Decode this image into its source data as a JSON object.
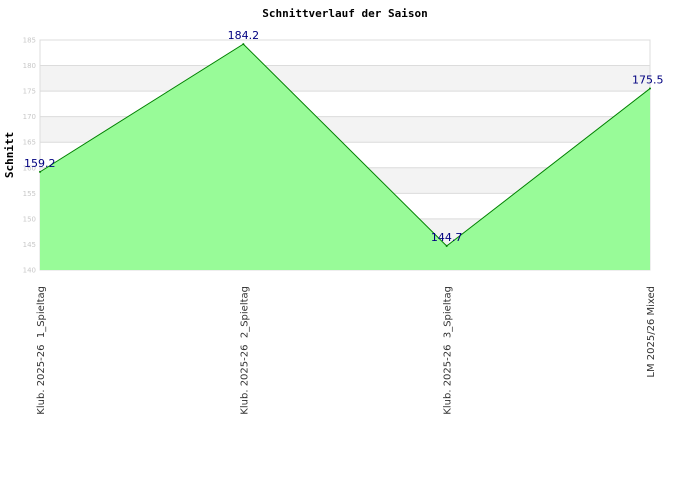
{
  "chart_data": {
    "type": "area",
    "title": "Schnittverlauf der Saison",
    "ylabel": "Schnitt",
    "xlabel": "",
    "categories": [
      "Klub. 2025-26  1_Spieltag",
      "Klub. 2025-26  2_Spieltag",
      "Klub. 2025-26  3_Spieltag",
      "LM 2025/26 Mixed"
    ],
    "values": [
      159.2,
      184.2,
      144.7,
      175.5
    ],
    "data_labels": [
      "159.2",
      "184.2",
      "144.7",
      "175.5"
    ],
    "ylim": [
      140,
      185
    ],
    "yticks": [
      140,
      145,
      150,
      155,
      160,
      165,
      170,
      175,
      180,
      185
    ],
    "ytick_labels": [
      "140",
      "145",
      "150",
      "155",
      "160",
      "165",
      "170",
      "175",
      "180",
      "185"
    ],
    "grid": true,
    "colors": {
      "fill": "#98fb98",
      "line": "#008000",
      "band": "#f3f3f3",
      "label": "#000080"
    }
  }
}
